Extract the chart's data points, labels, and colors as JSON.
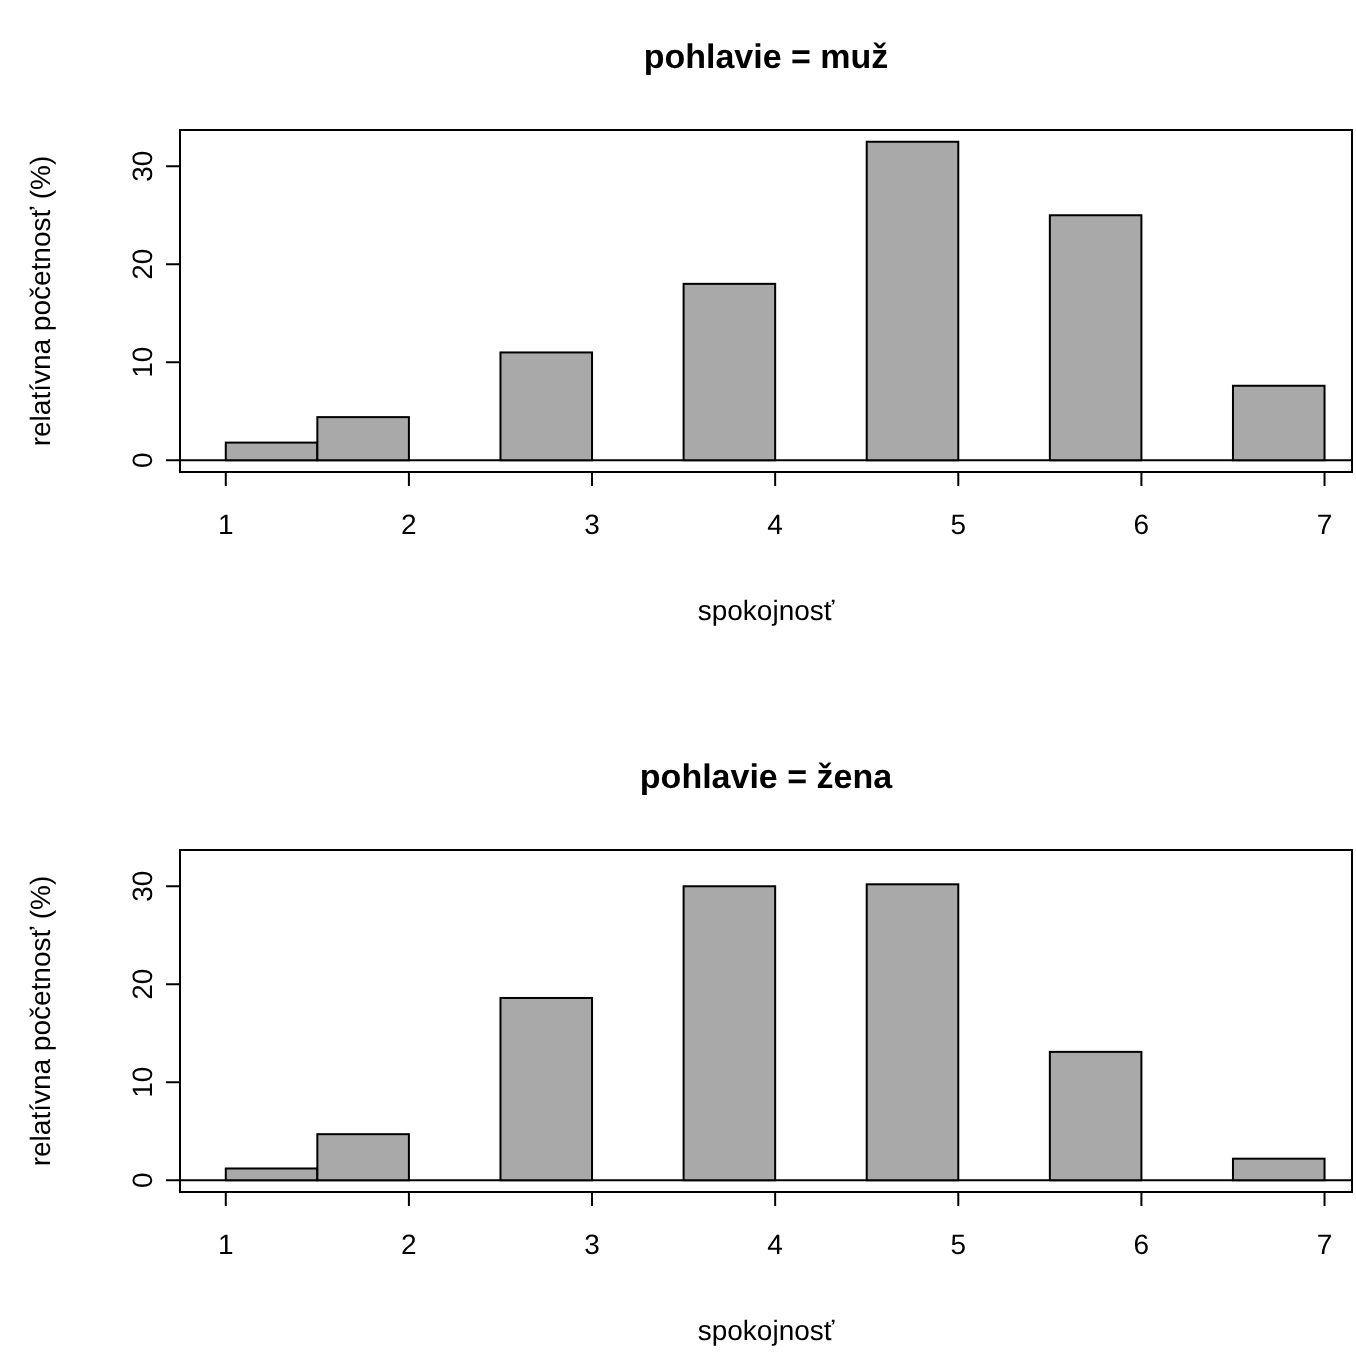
{
  "chart_data": [
    {
      "type": "histogram",
      "title": "pohlavie = muž",
      "xlabel": "spokojnosť",
      "ylabel": "relatívna početnosť (%)",
      "bins": [
        1,
        1.5,
        2,
        2.5,
        3,
        3.5,
        4,
        4.5,
        5,
        5.5,
        6,
        6.5,
        7
      ],
      "values": [
        1.8,
        4.4,
        0,
        11,
        0,
        18,
        0,
        32.5,
        0,
        25,
        0,
        7.6
      ],
      "color": "#a9a9a9",
      "xlim": [
        0.75,
        7.15
      ],
      "ylim": [
        -1.2,
        33.7
      ],
      "xticks": [
        1,
        2,
        3,
        4,
        5,
        6,
        7
      ],
      "yticks": [
        0,
        10,
        20,
        30
      ]
    },
    {
      "type": "histogram",
      "title": "pohlavie = žena",
      "xlabel": "spokojnosť",
      "ylabel": "relatívna početnosť (%)",
      "bins": [
        1,
        1.5,
        2,
        2.5,
        3,
        3.5,
        4,
        4.5,
        5,
        5.5,
        6,
        6.5,
        7
      ],
      "values": [
        1.2,
        4.7,
        0,
        18.6,
        0,
        30,
        0,
        30.2,
        0,
        13.1,
        0,
        2.2
      ],
      "color": "#a9a9a9",
      "xlim": [
        0.75,
        7.15
      ],
      "ylim": [
        -1.2,
        33.7
      ],
      "xticks": [
        1,
        2,
        3,
        4,
        5,
        6,
        7
      ],
      "yticks": [
        0,
        10,
        20,
        30
      ]
    }
  ]
}
